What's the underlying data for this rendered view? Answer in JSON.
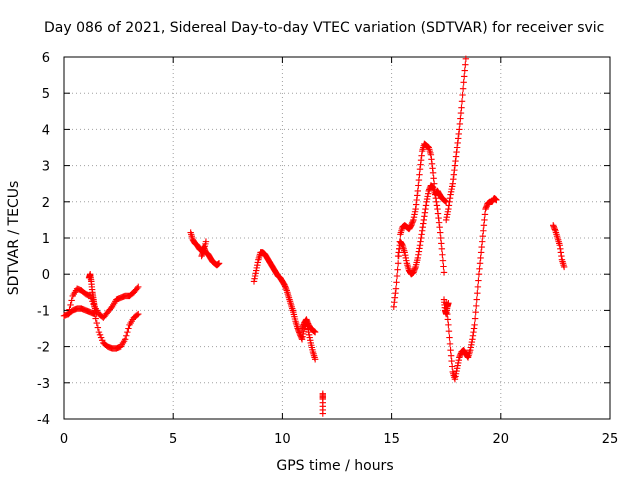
{
  "chart_data": {
    "type": "scatter",
    "title": "Day 086 of 2021, Sidereal Day-to-day VTEC variation (SDTVAR) for receiver svic",
    "xlabel": "GPS time / hours",
    "ylabel": "SDTVAR / TECUs",
    "xlim": [
      0,
      25
    ],
    "ylim": [
      -4,
      6
    ],
    "xticks": [
      0,
      5,
      10,
      15,
      20,
      25
    ],
    "yticks": [
      -4,
      -3,
      -2,
      -1,
      0,
      1,
      2,
      3,
      4,
      5,
      6
    ],
    "grid": true,
    "marker": "+",
    "color": "#ff0000",
    "series": [
      {
        "name": "segment-1-lower",
        "x": [
          0.0,
          0.2,
          0.4,
          0.6,
          0.8,
          1.0,
          1.2,
          1.4,
          1.6,
          1.8,
          2.0,
          2.2,
          2.4,
          2.6,
          2.8,
          3.0,
          3.2,
          3.4
        ],
        "y": [
          -1.15,
          -1.1,
          -1.0,
          -0.95,
          -0.95,
          -1.0,
          -1.05,
          -1.1,
          -1.6,
          -1.9,
          -2.0,
          -2.05,
          -2.05,
          -2.0,
          -1.8,
          -1.4,
          -1.2,
          -1.1
        ]
      },
      {
        "name": "segment-1-upper",
        "x": [
          0.2,
          0.4,
          0.6,
          0.8,
          1.0,
          1.2,
          1.4,
          1.6,
          1.8,
          2.0,
          2.2,
          2.4,
          2.6,
          2.8,
          3.0,
          3.2,
          3.4
        ],
        "y": [
          -1.1,
          -0.6,
          -0.4,
          -0.45,
          -0.55,
          -0.6,
          -0.9,
          -1.1,
          -1.2,
          -1.05,
          -0.9,
          -0.7,
          -0.65,
          -0.6,
          -0.6,
          -0.5,
          -0.35
        ]
      },
      {
        "name": "segment-1-spike",
        "x": [
          1.15,
          1.2,
          1.25,
          1.3,
          1.35,
          1.4,
          1.5
        ],
        "y": [
          -0.1,
          0.0,
          -0.2,
          -0.5,
          -0.7,
          -0.9,
          -1.1
        ]
      },
      {
        "name": "segment-2",
        "x": [
          5.8,
          5.9,
          6.0,
          6.1,
          6.2,
          6.3,
          6.4,
          6.5,
          6.6,
          6.7,
          6.8,
          6.9,
          7.0,
          7.1
        ],
        "y": [
          1.15,
          0.95,
          0.85,
          0.8,
          0.7,
          0.65,
          0.75,
          0.6,
          0.55,
          0.45,
          0.35,
          0.3,
          0.25,
          0.3
        ]
      },
      {
        "name": "segment-2-tail",
        "x": [
          6.3,
          6.4,
          6.5
        ],
        "y": [
          0.5,
          0.65,
          0.9
        ]
      },
      {
        "name": "segment-3",
        "x": [
          8.7,
          8.8,
          8.9,
          9.0,
          9.1,
          9.2,
          9.3,
          9.4,
          9.5,
          9.6,
          9.7,
          9.8,
          9.9,
          10.0,
          10.1,
          10.2,
          10.3,
          10.4,
          10.5,
          10.6,
          10.7,
          10.8,
          10.9,
          11.0,
          11.1,
          11.2,
          11.3,
          11.4,
          11.5
        ],
        "y": [
          -0.2,
          0.1,
          0.4,
          0.6,
          0.6,
          0.55,
          0.45,
          0.35,
          0.25,
          0.15,
          0.05,
          -0.05,
          -0.1,
          -0.2,
          -0.3,
          -0.45,
          -0.65,
          -0.85,
          -1.05,
          -1.3,
          -1.5,
          -1.65,
          -1.8,
          -1.5,
          -1.3,
          -1.6,
          -1.9,
          -2.15,
          -2.35
        ]
      },
      {
        "name": "segment-3-branch",
        "x": [
          10.9,
          11.0,
          11.1,
          11.2,
          11.3,
          11.4,
          11.5
        ],
        "y": [
          -1.5,
          -1.35,
          -1.25,
          -1.4,
          -1.5,
          -1.55,
          -1.6
        ]
      },
      {
        "name": "segment-4",
        "x": [
          11.85,
          11.85,
          11.85
        ],
        "y": [
          -3.3,
          -3.45,
          -3.85
        ]
      },
      {
        "name": "segment-5-main",
        "x": [
          15.1,
          15.2,
          15.3,
          15.4,
          15.5,
          15.6,
          15.7,
          15.8,
          15.9,
          16.0,
          16.1,
          16.2,
          16.3,
          16.4,
          16.5,
          16.6,
          16.7,
          16.8,
          16.9,
          17.0,
          17.1,
          17.2,
          17.3,
          17.4,
          17.5
        ],
        "y": [
          -0.9,
          -0.4,
          0.3,
          1.1,
          1.3,
          1.35,
          1.3,
          1.25,
          1.35,
          1.5,
          1.8,
          2.3,
          2.9,
          3.4,
          3.6,
          3.55,
          3.5,
          3.3,
          2.8,
          2.2,
          2.3,
          2.2,
          2.1,
          2.05,
          2.0
        ]
      },
      {
        "name": "segment-5-low",
        "x": [
          15.3,
          15.4,
          15.5,
          15.6,
          15.7,
          15.8,
          15.9,
          16.0,
          16.1,
          16.2,
          16.3,
          16.4,
          16.5,
          16.6,
          16.7,
          16.8,
          16.9,
          17.0,
          17.1,
          17.2,
          17.3,
          17.4
        ],
        "y": [
          0.5,
          0.9,
          0.8,
          0.6,
          0.3,
          0.1,
          0.0,
          0.05,
          0.2,
          0.45,
          0.8,
          1.2,
          1.6,
          2.0,
          2.3,
          2.45,
          2.4,
          2.2,
          1.8,
          1.3,
          0.7,
          0.05
        ]
      },
      {
        "name": "segment-6",
        "x": [
          17.5,
          17.6,
          17.7,
          17.8,
          17.9,
          18.0,
          18.1,
          18.2,
          18.3,
          18.4,
          18.5,
          18.6,
          18.7,
          18.8,
          18.9,
          19.0,
          19.1,
          19.2,
          19.3,
          19.4,
          19.5,
          19.6,
          19.7,
          19.8
        ],
        "y": [
          -0.8,
          -1.4,
          -2.1,
          -2.7,
          -2.9,
          -2.6,
          -2.3,
          -2.15,
          -2.1,
          -2.2,
          -2.3,
          -2.1,
          -1.8,
          -1.4,
          -0.7,
          0.0,
          0.6,
          1.2,
          1.8,
          1.95,
          2.0,
          2.0,
          2.1,
          2.05
        ]
      },
      {
        "name": "segment-6-rise",
        "x": [
          17.5,
          17.6,
          17.7,
          17.8,
          17.9,
          18.0,
          18.1,
          18.2,
          18.3,
          18.4
        ],
        "y": [
          1.5,
          1.8,
          2.2,
          2.5,
          3.0,
          3.5,
          4.0,
          4.6,
          5.3,
          5.95
        ]
      },
      {
        "name": "segment-6-drop",
        "x": [
          17.4,
          17.45,
          17.5,
          17.55,
          17.6
        ],
        "y": [
          -0.7,
          -1.0,
          -1.1,
          -0.9,
          -0.8
        ]
      },
      {
        "name": "segment-7",
        "x": [
          22.4,
          22.5,
          22.6,
          22.7,
          22.8,
          22.9
        ],
        "y": [
          1.35,
          1.2,
          1.0,
          0.8,
          0.4,
          0.2
        ]
      }
    ]
  }
}
